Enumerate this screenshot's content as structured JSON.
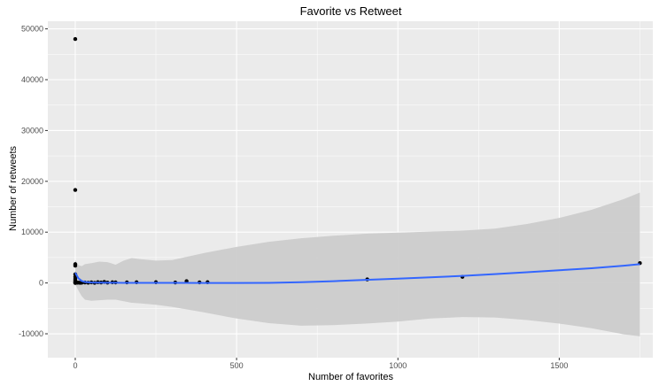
{
  "chart_data": {
    "type": "scatter",
    "title": "Favorite vs Retweet",
    "xlabel": "Number of favorites",
    "ylabel": "Number of retweets",
    "xlim": [
      -85,
      1790
    ],
    "ylim": [
      -14700,
      51500
    ],
    "x_ticks": [
      0,
      500,
      1000,
      1500
    ],
    "x_tick_labels": [
      "0",
      "500",
      "1000",
      "1500"
    ],
    "y_ticks": [
      -10000,
      0,
      10000,
      20000,
      30000,
      40000,
      50000
    ],
    "y_tick_labels": [
      "-10000",
      "0",
      "10000",
      "20000",
      "30000",
      "40000",
      "50000"
    ],
    "grid": true,
    "points": [
      {
        "x": 0,
        "y": 48000
      },
      {
        "x": 0,
        "y": 18300
      },
      {
        "x": 0,
        "y": 3700
      },
      {
        "x": 0,
        "y": 3400
      },
      {
        "x": 0,
        "y": 1700
      },
      {
        "x": 0,
        "y": 1200
      },
      {
        "x": 0,
        "y": 800
      },
      {
        "x": 0,
        "y": 500
      },
      {
        "x": 0,
        "y": 250
      },
      {
        "x": 0,
        "y": 100
      },
      {
        "x": 0,
        "y": 0
      },
      {
        "x": 3,
        "y": 150
      },
      {
        "x": 6,
        "y": 50
      },
      {
        "x": 10,
        "y": 80
      },
      {
        "x": 15,
        "y": 40
      },
      {
        "x": 20,
        "y": 60
      },
      {
        "x": 30,
        "y": 100
      },
      {
        "x": 40,
        "y": 50
      },
      {
        "x": 50,
        "y": 120
      },
      {
        "x": 60,
        "y": 30
      },
      {
        "x": 70,
        "y": 150
      },
      {
        "x": 80,
        "y": 90
      },
      {
        "x": 90,
        "y": 200
      },
      {
        "x": 100,
        "y": 70
      },
      {
        "x": 115,
        "y": 130
      },
      {
        "x": 125,
        "y": 110
      },
      {
        "x": 160,
        "y": 120
      },
      {
        "x": 190,
        "y": 140
      },
      {
        "x": 250,
        "y": 150
      },
      {
        "x": 310,
        "y": 100
      },
      {
        "x": 345,
        "y": 350
      },
      {
        "x": 385,
        "y": 120
      },
      {
        "x": 410,
        "y": 150
      },
      {
        "x": 905,
        "y": 700
      },
      {
        "x": 1200,
        "y": 1200
      },
      {
        "x": 1750,
        "y": 3900
      }
    ],
    "trend": {
      "method": "smooth",
      "color": "#3366ff",
      "x": [
        0,
        10,
        20,
        30,
        50,
        75,
        100,
        125,
        150,
        175,
        200,
        250,
        300,
        400,
        500,
        600,
        700,
        800,
        900,
        1000,
        1100,
        1200,
        1300,
        1400,
        1500,
        1600,
        1700,
        1750
      ],
      "y": [
        2000,
        900,
        400,
        200,
        80,
        60,
        50,
        40,
        30,
        30,
        20,
        20,
        10,
        0,
        0,
        20,
        150,
        350,
        600,
        850,
        1100,
        1400,
        1750,
        2100,
        2500,
        2900,
        3400,
        3700
      ],
      "lower": [
        -300,
        -1500,
        -2600,
        -3300,
        -3500,
        -3400,
        -3300,
        -3300,
        -3600,
        -3900,
        -4000,
        -4300,
        -4700,
        -5800,
        -7000,
        -7900,
        -8400,
        -8300,
        -8000,
        -7600,
        -7000,
        -6700,
        -6800,
        -7300,
        -8000,
        -8900,
        -10100,
        -10500
      ],
      "upper": [
        4500,
        3500,
        3300,
        3700,
        3900,
        4200,
        4100,
        3600,
        4400,
        4900,
        4700,
        4400,
        4500,
        5900,
        7100,
        8100,
        8800,
        9300,
        9700,
        9900,
        10100,
        10300,
        10700,
        11600,
        12800,
        14400,
        16500,
        17800
      ]
    },
    "band_color": "#cccccc",
    "point_color": "#000000",
    "panel_background": "#ebebeb",
    "grid_color": "#ffffff"
  }
}
